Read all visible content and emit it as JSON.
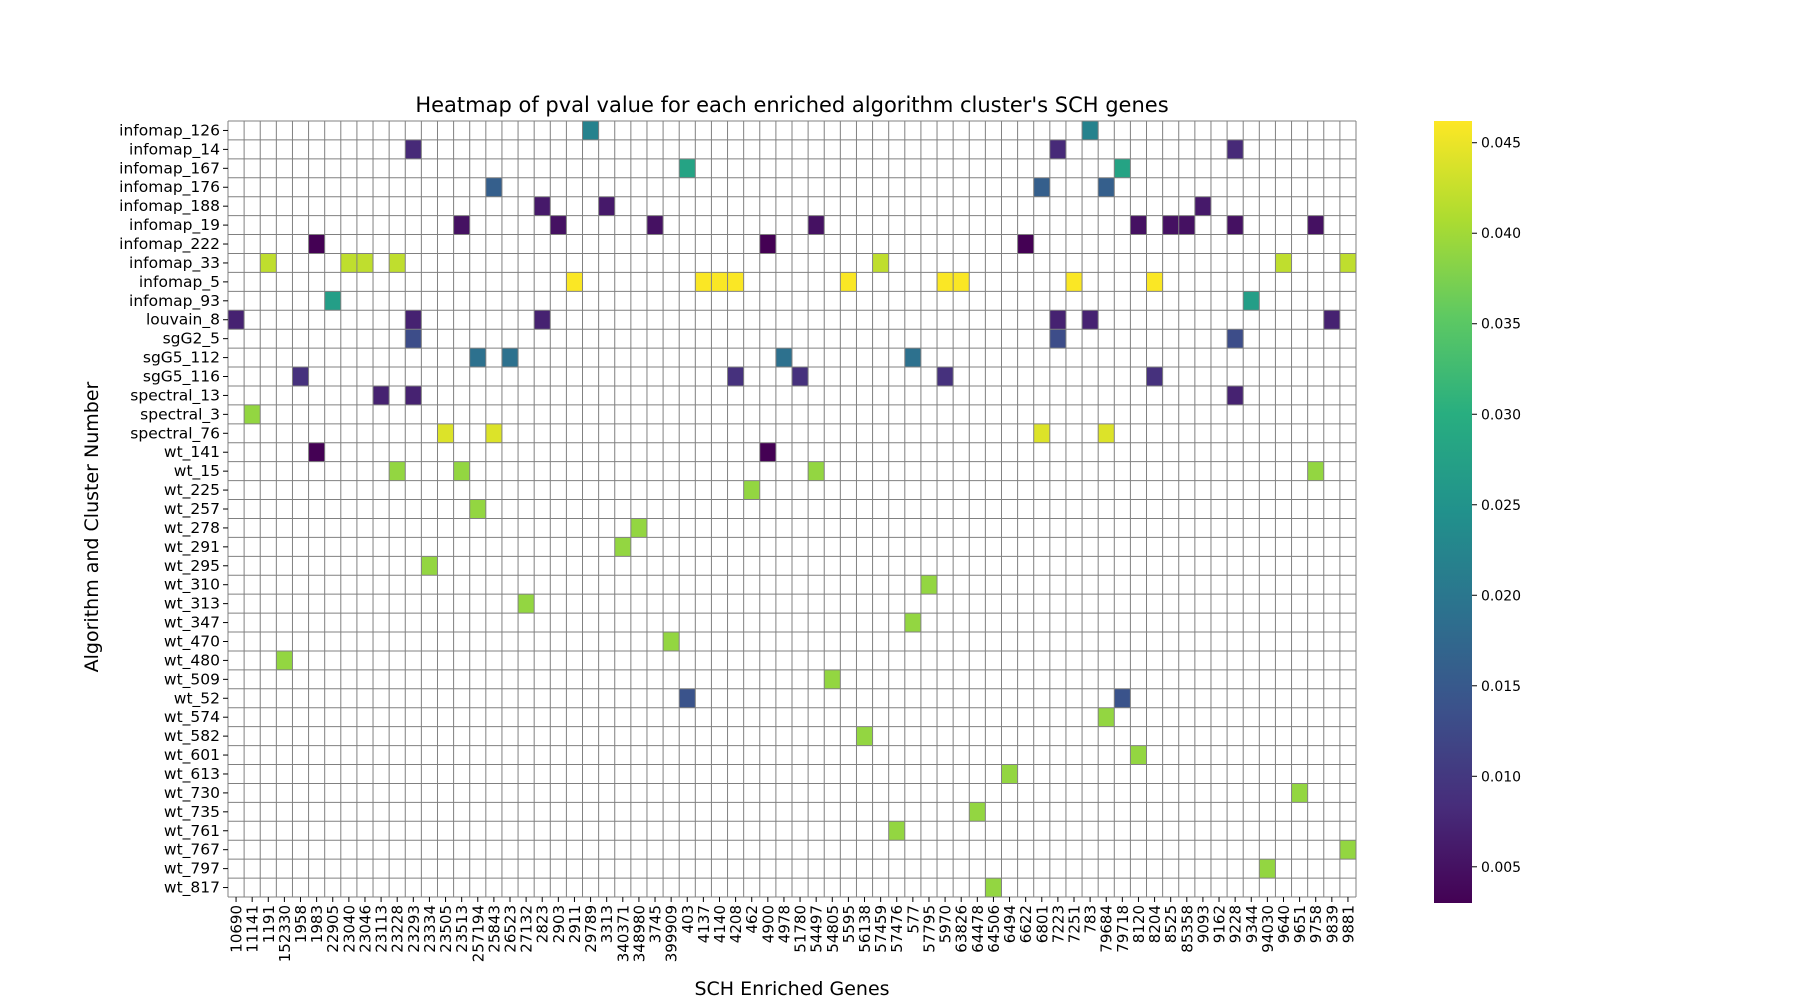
{
  "chart_data": {
    "type": "heatmap",
    "title": "Heatmap of pval value for each enriched algorithm cluster's SCH genes",
    "xlabel": "SCH Enriched Genes",
    "ylabel": "Algorithm and Cluster Number",
    "colormap": "viridis",
    "colorbar": {
      "min": 0.003,
      "max": 0.0462,
      "ticks": [
        "0.005",
        "0.010",
        "0.015",
        "0.020",
        "0.025",
        "0.030",
        "0.035",
        "0.040",
        "0.045"
      ]
    },
    "grid": true,
    "missing_color": "#ffffff",
    "grid_color": "#808080",
    "x_categories": [
      "10690",
      "11141",
      "1191",
      "152330",
      "1958",
      "1983",
      "22905",
      "23040",
      "23046",
      "23113",
      "23228",
      "23293",
      "23334",
      "23505",
      "23513",
      "257194",
      "25843",
      "26523",
      "27132",
      "2823",
      "2903",
      "2911",
      "29789",
      "3313",
      "340371",
      "348980",
      "3745",
      "399909",
      "403",
      "4137",
      "4140",
      "4208",
      "462",
      "4900",
      "4978",
      "51780",
      "54497",
      "54805",
      "5595",
      "56138",
      "57459",
      "57476",
      "577",
      "57795",
      "5970",
      "63826",
      "64478",
      "64506",
      "6494",
      "6622",
      "6801",
      "7223",
      "7251",
      "783",
      "79684",
      "79718",
      "8120",
      "8204",
      "8525",
      "85358",
      "9093",
      "9162",
      "9228",
      "9344",
      "94030",
      "9640",
      "9651",
      "9758",
      "9839",
      "9881"
    ],
    "y_categories": [
      "infomap_126",
      "infomap_14",
      "infomap_167",
      "infomap_176",
      "infomap_188",
      "infomap_19",
      "infomap_222",
      "infomap_33",
      "infomap_5",
      "infomap_93",
      "louvain_8",
      "sgG2_5",
      "sgG5_112",
      "sgG5_116",
      "spectral_13",
      "spectral_3",
      "spectral_76",
      "wt_141",
      "wt_15",
      "wt_225",
      "wt_257",
      "wt_278",
      "wt_291",
      "wt_295",
      "wt_310",
      "wt_313",
      "wt_347",
      "wt_470",
      "wt_480",
      "wt_509",
      "wt_52",
      "wt_574",
      "wt_582",
      "wt_601",
      "wt_613",
      "wt_730",
      "wt_735",
      "wt_761",
      "wt_767",
      "wt_797",
      "wt_817"
    ],
    "values": [
      {
        "y": "infomap_126",
        "x": "29789",
        "v": 0.022
      },
      {
        "y": "infomap_126",
        "x": "783",
        "v": 0.022
      },
      {
        "y": "infomap_14",
        "x": "23293",
        "v": 0.008
      },
      {
        "y": "infomap_14",
        "x": "7223",
        "v": 0.008
      },
      {
        "y": "infomap_14",
        "x": "9228",
        "v": 0.008
      },
      {
        "y": "infomap_167",
        "x": "403",
        "v": 0.028
      },
      {
        "y": "infomap_167",
        "x": "79718",
        "v": 0.028
      },
      {
        "y": "infomap_176",
        "x": "25843",
        "v": 0.016
      },
      {
        "y": "infomap_176",
        "x": "6801",
        "v": 0.016
      },
      {
        "y": "infomap_176",
        "x": "79684",
        "v": 0.016
      },
      {
        "y": "infomap_188",
        "x": "2823",
        "v": 0.006
      },
      {
        "y": "infomap_188",
        "x": "3313",
        "v": 0.006
      },
      {
        "y": "infomap_188",
        "x": "9093",
        "v": 0.006
      },
      {
        "y": "infomap_19",
        "x": "23513",
        "v": 0.005
      },
      {
        "y": "infomap_19",
        "x": "2903",
        "v": 0.005
      },
      {
        "y": "infomap_19",
        "x": "3745",
        "v": 0.005
      },
      {
        "y": "infomap_19",
        "x": "54497",
        "v": 0.005
      },
      {
        "y": "infomap_19",
        "x": "8120",
        "v": 0.005
      },
      {
        "y": "infomap_19",
        "x": "8525",
        "v": 0.005
      },
      {
        "y": "infomap_19",
        "x": "85358",
        "v": 0.005
      },
      {
        "y": "infomap_19",
        "x": "9228",
        "v": 0.005
      },
      {
        "y": "infomap_19",
        "x": "9758",
        "v": 0.005
      },
      {
        "y": "infomap_222",
        "x": "1983",
        "v": 0.003
      },
      {
        "y": "infomap_222",
        "x": "4900",
        "v": 0.003
      },
      {
        "y": "infomap_222",
        "x": "6622",
        "v": 0.003
      },
      {
        "y": "infomap_33",
        "x": "1191",
        "v": 0.042
      },
      {
        "y": "infomap_33",
        "x": "23040",
        "v": 0.042
      },
      {
        "y": "infomap_33",
        "x": "23046",
        "v": 0.042
      },
      {
        "y": "infomap_33",
        "x": "23228",
        "v": 0.042
      },
      {
        "y": "infomap_33",
        "x": "57459",
        "v": 0.042
      },
      {
        "y": "infomap_33",
        "x": "9640",
        "v": 0.042
      },
      {
        "y": "infomap_33",
        "x": "9881",
        "v": 0.042
      },
      {
        "y": "infomap_5",
        "x": "2911",
        "v": 0.046
      },
      {
        "y": "infomap_5",
        "x": "4137",
        "v": 0.046
      },
      {
        "y": "infomap_5",
        "x": "4140",
        "v": 0.046
      },
      {
        "y": "infomap_5",
        "x": "4208",
        "v": 0.046
      },
      {
        "y": "infomap_5",
        "x": "5595",
        "v": 0.046
      },
      {
        "y": "infomap_5",
        "x": "5970",
        "v": 0.046
      },
      {
        "y": "infomap_5",
        "x": "63826",
        "v": 0.046
      },
      {
        "y": "infomap_5",
        "x": "7251",
        "v": 0.046
      },
      {
        "y": "infomap_5",
        "x": "8204",
        "v": 0.046
      },
      {
        "y": "infomap_93",
        "x": "22905",
        "v": 0.027
      },
      {
        "y": "infomap_93",
        "x": "9344",
        "v": 0.027
      },
      {
        "y": "louvain_8",
        "x": "10690",
        "v": 0.007
      },
      {
        "y": "louvain_8",
        "x": "23293",
        "v": 0.007
      },
      {
        "y": "louvain_8",
        "x": "2823",
        "v": 0.007
      },
      {
        "y": "louvain_8",
        "x": "7223",
        "v": 0.007
      },
      {
        "y": "louvain_8",
        "x": "783",
        "v": 0.007
      },
      {
        "y": "louvain_8",
        "x": "9839",
        "v": 0.007
      },
      {
        "y": "sgG2_5",
        "x": "23293",
        "v": 0.013
      },
      {
        "y": "sgG2_5",
        "x": "7223",
        "v": 0.013
      },
      {
        "y": "sgG2_5",
        "x": "9228",
        "v": 0.013
      },
      {
        "y": "sgG5_112",
        "x": "257194",
        "v": 0.019
      },
      {
        "y": "sgG5_112",
        "x": "26523",
        "v": 0.019
      },
      {
        "y": "sgG5_112",
        "x": "4978",
        "v": 0.019
      },
      {
        "y": "sgG5_112",
        "x": "577",
        "v": 0.019
      },
      {
        "y": "sgG5_116",
        "x": "1958",
        "v": 0.009
      },
      {
        "y": "sgG5_116",
        "x": "4208",
        "v": 0.009
      },
      {
        "y": "sgG5_116",
        "x": "51780",
        "v": 0.009
      },
      {
        "y": "sgG5_116",
        "x": "5970",
        "v": 0.009
      },
      {
        "y": "sgG5_116",
        "x": "8204",
        "v": 0.009
      },
      {
        "y": "spectral_13",
        "x": "23113",
        "v": 0.007
      },
      {
        "y": "spectral_13",
        "x": "23293",
        "v": 0.007
      },
      {
        "y": "spectral_13",
        "x": "9228",
        "v": 0.007
      },
      {
        "y": "spectral_3",
        "x": "11141",
        "v": 0.039
      },
      {
        "y": "spectral_76",
        "x": "23505",
        "v": 0.044
      },
      {
        "y": "spectral_76",
        "x": "25843",
        "v": 0.044
      },
      {
        "y": "spectral_76",
        "x": "6801",
        "v": 0.044
      },
      {
        "y": "spectral_76",
        "x": "79684",
        "v": 0.044
      },
      {
        "y": "wt_141",
        "x": "1983",
        "v": 0.003
      },
      {
        "y": "wt_141",
        "x": "4900",
        "v": 0.003
      },
      {
        "y": "wt_15",
        "x": "23228",
        "v": 0.039
      },
      {
        "y": "wt_15",
        "x": "23513",
        "v": 0.039
      },
      {
        "y": "wt_15",
        "x": "54497",
        "v": 0.039
      },
      {
        "y": "wt_15",
        "x": "9758",
        "v": 0.039
      },
      {
        "y": "wt_225",
        "x": "462",
        "v": 0.039
      },
      {
        "y": "wt_257",
        "x": "257194",
        "v": 0.039
      },
      {
        "y": "wt_278",
        "x": "348980",
        "v": 0.039
      },
      {
        "y": "wt_291",
        "x": "340371",
        "v": 0.039
      },
      {
        "y": "wt_295",
        "x": "23334",
        "v": 0.039
      },
      {
        "y": "wt_310",
        "x": "57795",
        "v": 0.039
      },
      {
        "y": "wt_313",
        "x": "27132",
        "v": 0.039
      },
      {
        "y": "wt_347",
        "x": "577",
        "v": 0.039
      },
      {
        "y": "wt_470",
        "x": "399909",
        "v": 0.039
      },
      {
        "y": "wt_480",
        "x": "152330",
        "v": 0.039
      },
      {
        "y": "wt_509",
        "x": "54805",
        "v": 0.039
      },
      {
        "y": "wt_52",
        "x": "403",
        "v": 0.014
      },
      {
        "y": "wt_52",
        "x": "79718",
        "v": 0.014
      },
      {
        "y": "wt_574",
        "x": "79684",
        "v": 0.039
      },
      {
        "y": "wt_582",
        "x": "56138",
        "v": 0.039
      },
      {
        "y": "wt_601",
        "x": "8120",
        "v": 0.039
      },
      {
        "y": "wt_613",
        "x": "6494",
        "v": 0.039
      },
      {
        "y": "wt_730",
        "x": "9651",
        "v": 0.039
      },
      {
        "y": "wt_735",
        "x": "64478",
        "v": 0.039
      },
      {
        "y": "wt_761",
        "x": "57476",
        "v": 0.039
      },
      {
        "y": "wt_767",
        "x": "9881",
        "v": 0.039
      },
      {
        "y": "wt_797",
        "x": "94030",
        "v": 0.039
      },
      {
        "y": "wt_817",
        "x": "64506",
        "v": 0.039
      }
    ]
  }
}
